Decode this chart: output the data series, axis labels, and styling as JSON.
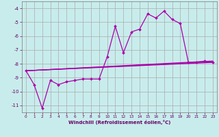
{
  "xlabel": "Windchill (Refroidissement éolien,°C)",
  "bg_color": "#c8ecec",
  "grid_color": "#aaaaaa",
  "line_color": "#aa00aa",
  "axis_color": "#660066",
  "xlim": [
    -0.5,
    23.5
  ],
  "ylim": [
    -11.5,
    -3.5
  ],
  "yticks": [
    -11,
    -10,
    -9,
    -8,
    -7,
    -6,
    -5,
    -4
  ],
  "xticks": [
    0,
    1,
    2,
    3,
    4,
    5,
    6,
    7,
    8,
    9,
    10,
    11,
    12,
    13,
    14,
    15,
    16,
    17,
    18,
    19,
    20,
    21,
    22,
    23
  ],
  "series1_x": [
    0,
    1,
    2,
    3,
    4,
    5,
    6,
    7,
    8,
    9,
    10,
    11,
    12,
    13,
    14,
    15,
    16,
    17,
    18,
    19,
    20,
    21,
    22,
    23
  ],
  "series1_y": [
    -8.5,
    -9.5,
    -11.2,
    -9.2,
    -9.5,
    -9.3,
    -9.2,
    -9.1,
    -9.1,
    -9.1,
    -7.5,
    -5.3,
    -7.2,
    -5.7,
    -5.5,
    -4.4,
    -4.7,
    -4.2,
    -4.8,
    -5.1,
    -7.9,
    -7.9,
    -7.8,
    -7.9
  ],
  "trend1_x": [
    0,
    23
  ],
  "trend1_y": [
    -8.5,
    -7.8
  ],
  "trend2_x": [
    0,
    23
  ],
  "trend2_y": [
    -8.5,
    -7.85
  ],
  "trend3_x": [
    0,
    23
  ],
  "trend3_y": [
    -8.5,
    -7.9
  ]
}
